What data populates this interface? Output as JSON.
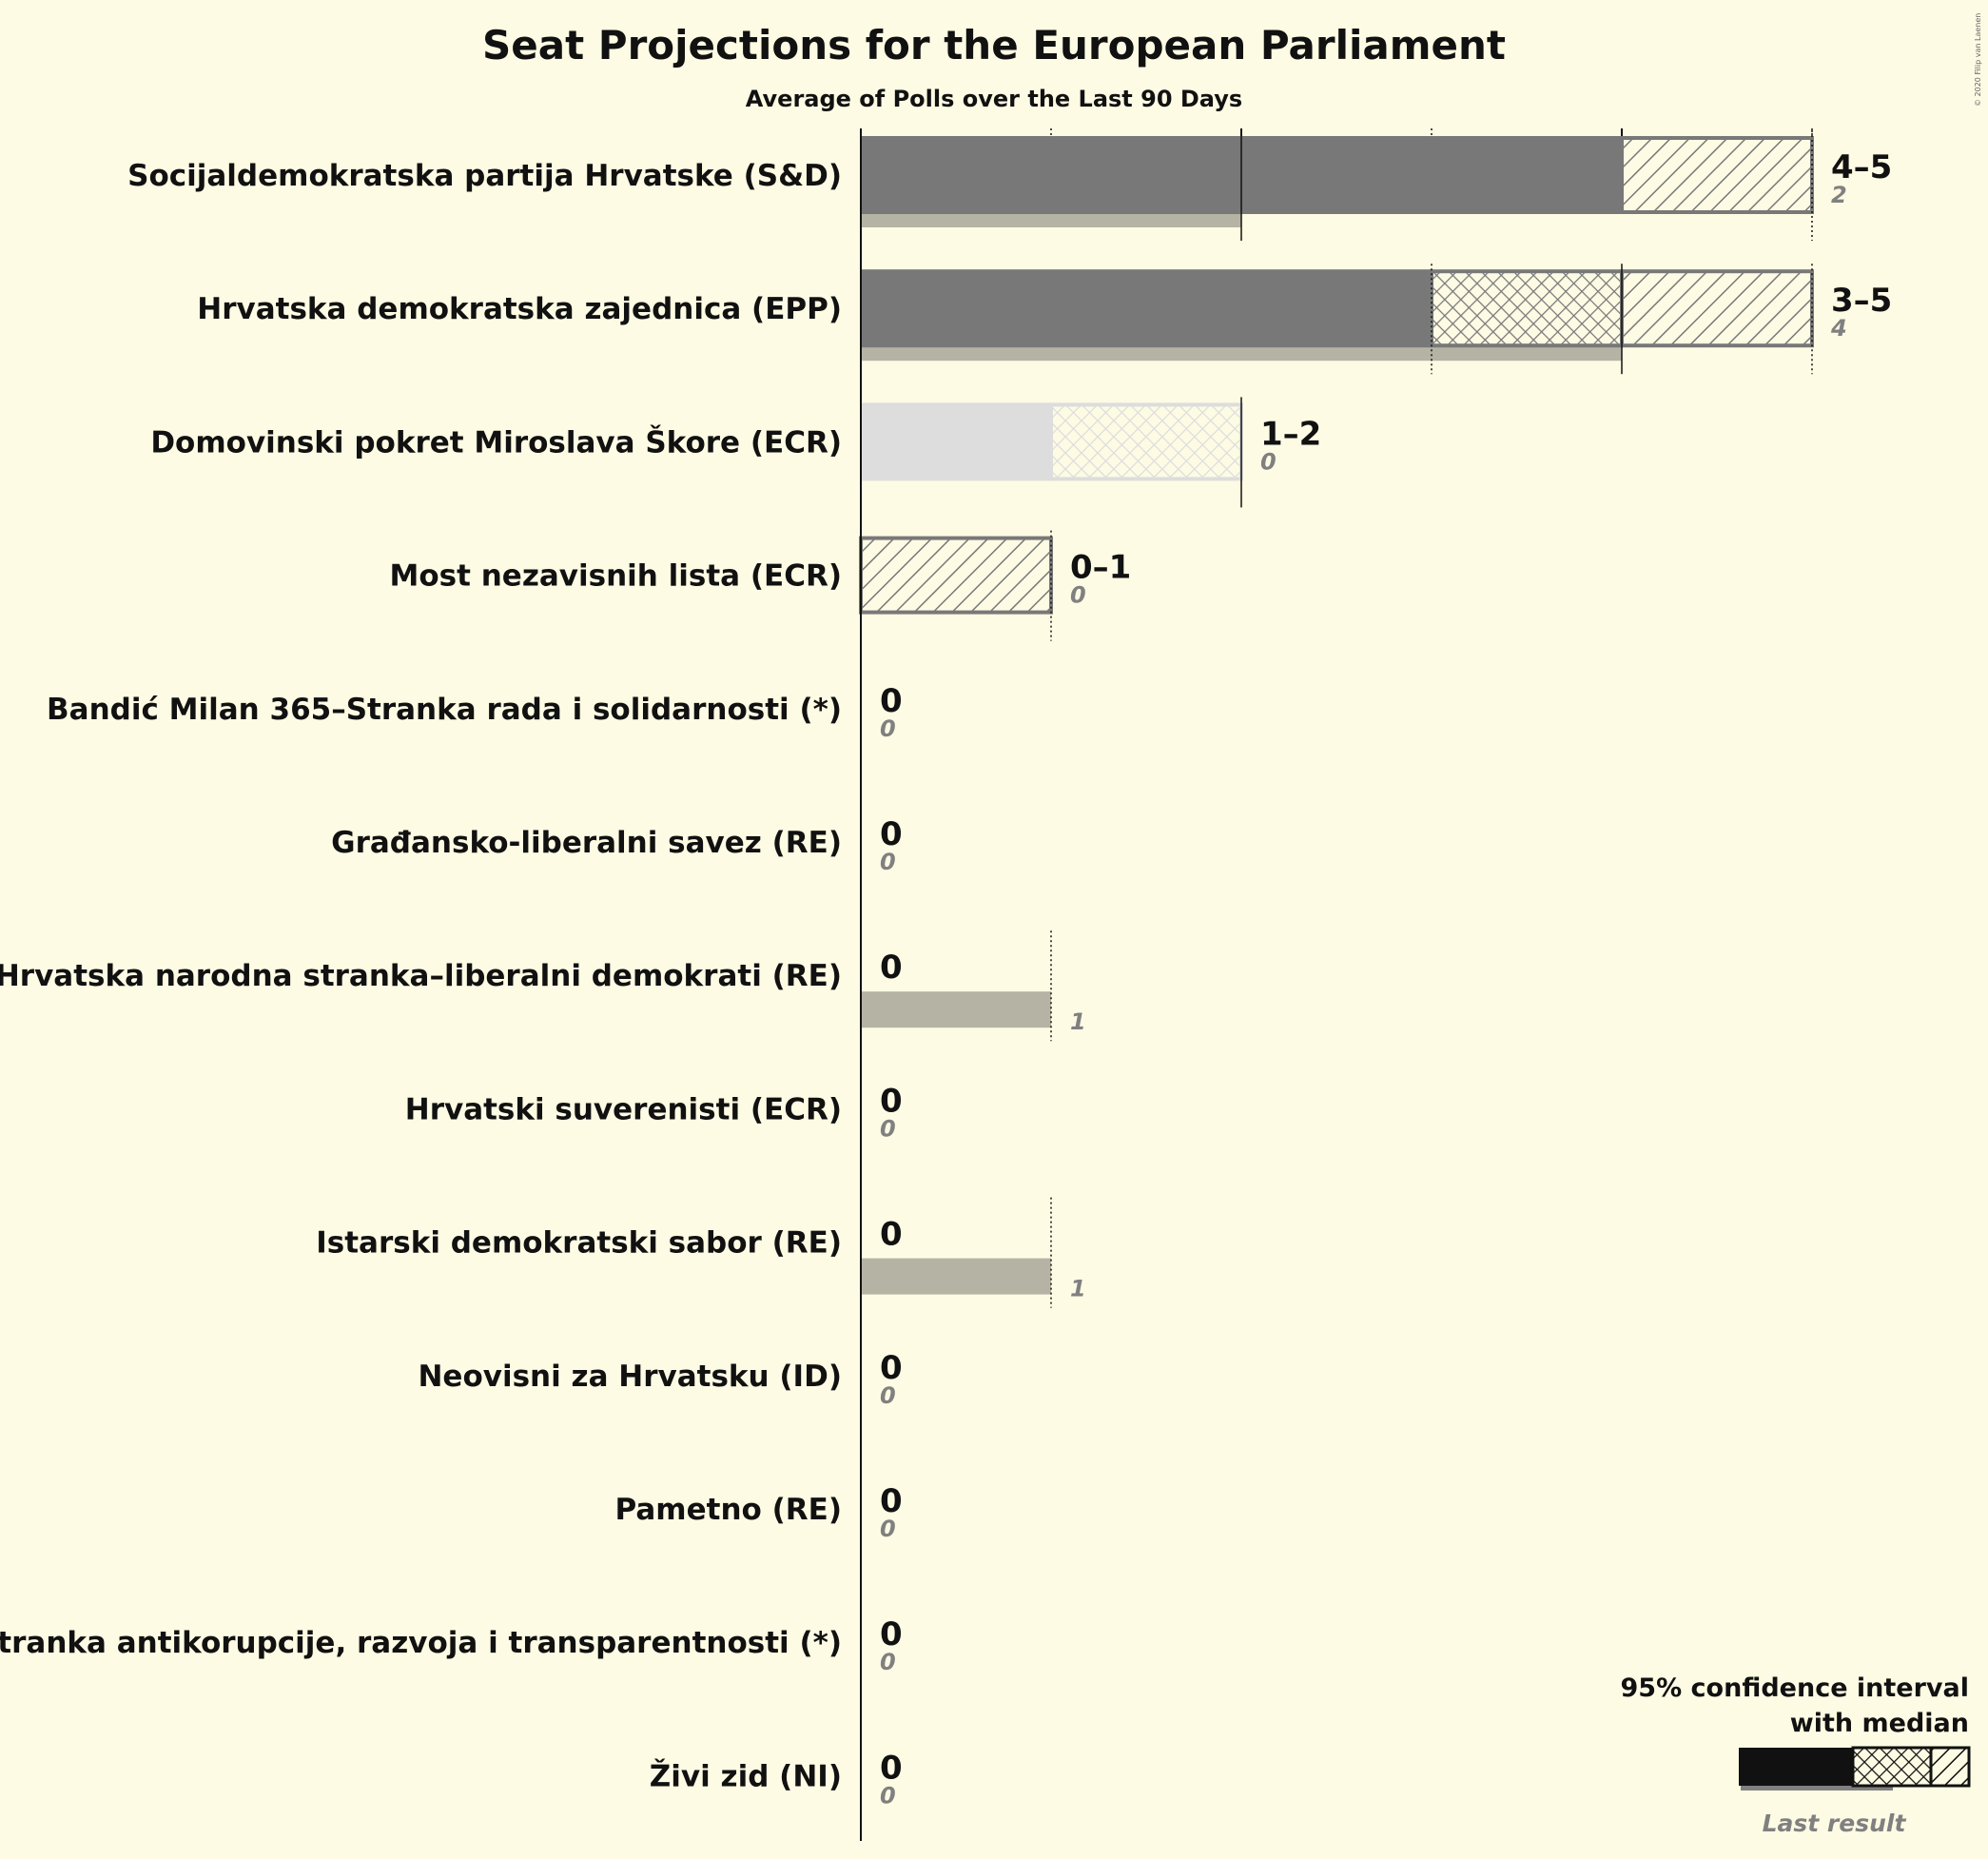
{
  "chart_data": {
    "type": "bar",
    "title": "Seat Projections for the European Parliament",
    "subtitle": "Average of Polls over the Last 90 Days",
    "copyright": "© 2020 Filip van Laenen",
    "x_range": [
      0,
      5
    ],
    "parties": [
      {
        "name": "Socijaldemokratska partija Hrvatske (S&D)",
        "low": 4,
        "median": 4,
        "high": 5,
        "last": 2,
        "range_label": "4–5",
        "last_label": "2",
        "color": "#787878",
        "outline": "#787878"
      },
      {
        "name": "Hrvatska demokratska zajednica (EPP)",
        "low": 3,
        "median": 4,
        "high": 5,
        "last": 4,
        "range_label": "3–5",
        "last_label": "4",
        "color": "#787878",
        "outline": "#787878"
      },
      {
        "name": "Domovinski pokret Miroslava Škore (ECR)",
        "low": 1,
        "median": 2,
        "high": 2,
        "last": 0,
        "range_label": "1–2",
        "last_label": "0",
        "color": "#dddddd",
        "outline": "#dddddd"
      },
      {
        "name": "Most nezavisnih lista (ECR)",
        "low": 0,
        "median": 0,
        "high": 1,
        "last": 0,
        "range_label": "0–1",
        "last_label": "0",
        "color": "#787878",
        "outline": "#787878"
      },
      {
        "name": "Bandić Milan 365–Stranka rada i solidarnosti (*)",
        "low": 0,
        "median": 0,
        "high": 0,
        "last": 0,
        "range_label": "0",
        "last_label": "0",
        "color": "#787878",
        "outline": "#787878"
      },
      {
        "name": "Građansko-liberalni savez (RE)",
        "low": 0,
        "median": 0,
        "high": 0,
        "last": 0,
        "range_label": "0",
        "last_label": "0",
        "color": "#787878",
        "outline": "#787878"
      },
      {
        "name": "Hrvatska narodna stranka–liberalni demokrati (RE)",
        "low": 0,
        "median": 0,
        "high": 0,
        "last": 1,
        "range_label": "0",
        "last_label": "1",
        "color": "#787878",
        "outline": "#787878"
      },
      {
        "name": "Hrvatski suverenisti (ECR)",
        "low": 0,
        "median": 0,
        "high": 0,
        "last": 0,
        "range_label": "0",
        "last_label": "0",
        "color": "#787878",
        "outline": "#787878"
      },
      {
        "name": "Istarski demokratski sabor (RE)",
        "low": 0,
        "median": 0,
        "high": 0,
        "last": 1,
        "range_label": "0",
        "last_label": "1",
        "color": "#787878",
        "outline": "#787878"
      },
      {
        "name": "Neovisni za Hrvatsku (ID)",
        "low": 0,
        "median": 0,
        "high": 0,
        "last": 0,
        "range_label": "0",
        "last_label": "0",
        "color": "#787878",
        "outline": "#787878"
      },
      {
        "name": "Pametno (RE)",
        "low": 0,
        "median": 0,
        "high": 0,
        "last": 0,
        "range_label": "0",
        "last_label": "0",
        "color": "#787878",
        "outline": "#787878"
      },
      {
        "name": "Stranka antikorupcije, razvoja i transparentnosti (*)",
        "low": 0,
        "median": 0,
        "high": 0,
        "last": 0,
        "range_label": "0",
        "last_label": "0",
        "color": "#787878",
        "outline": "#787878"
      },
      {
        "name": "Živi zid (NI)",
        "low": 0,
        "median": 0,
        "high": 0,
        "last": 0,
        "range_label": "0",
        "last_label": "0",
        "color": "#787878",
        "outline": "#787878"
      }
    ],
    "legend": {
      "line1": "95% confidence interval",
      "line2": "with median",
      "last_result": "Last result"
    },
    "colors": {
      "background": "#fefbe4",
      "last_result_bar": "#b5b3a3",
      "legend_solid": "#111111",
      "legend_last": "#808080"
    }
  }
}
